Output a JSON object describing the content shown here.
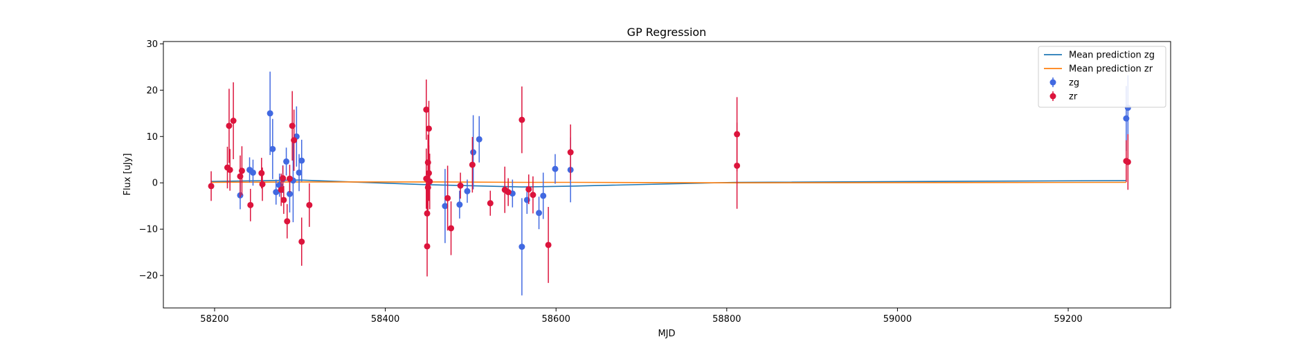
{
  "chart_data": {
    "type": "scatter",
    "title": "GP Regression",
    "xlabel": "MJD",
    "ylabel": "Flux [uJy]",
    "xlim": [
      58140,
      59320
    ],
    "ylim": [
      -27,
      30.5
    ],
    "xticks": [
      58200,
      58400,
      58600,
      58800,
      59000,
      59200
    ],
    "yticks": [
      -20,
      -10,
      0,
      10,
      20,
      30
    ],
    "grid": false,
    "legend_position": "top-right",
    "lines": [
      {
        "name": "Mean prediction zg",
        "color": "#1f77b4",
        "x": [
          58196,
          58300,
          58450,
          58560,
          58620,
          58810,
          59268
        ],
        "y": [
          0.3,
          0.6,
          -0.4,
          -0.9,
          -0.7,
          0.1,
          0.5
        ]
      },
      {
        "name": "Mean prediction zr",
        "color": "#ff7f0e",
        "x": [
          58196,
          58300,
          58450,
          58560,
          58620,
          58810,
          59268
        ],
        "y": [
          0.1,
          0.2,
          0.2,
          0.1,
          0.1,
          0.0,
          0.1
        ]
      }
    ],
    "series": [
      {
        "name": "zg",
        "color": "#4169e1",
        "points": [
          {
            "x": 58230,
            "y": -2.7,
            "err": 3.0
          },
          {
            "x": 58241,
            "y": 2.8,
            "err": 2.7
          },
          {
            "x": 58245,
            "y": 2.2,
            "err": 2.8
          },
          {
            "x": 58265,
            "y": 15.0,
            "err": 9.0
          },
          {
            "x": 58268,
            "y": 7.3,
            "err": 6.5
          },
          {
            "x": 58272,
            "y": -2.0,
            "err": 2.7
          },
          {
            "x": 58276,
            "y": -0.5,
            "err": 2.5
          },
          {
            "x": 58280,
            "y": 0.8,
            "err": 3.0
          },
          {
            "x": 58284,
            "y": 4.6,
            "err": 3.0
          },
          {
            "x": 58288,
            "y": -2.4,
            "err": 4.0
          },
          {
            "x": 58292,
            "y": 0.5,
            "err": 9.0
          },
          {
            "x": 58296,
            "y": 10.0,
            "err": 6.5
          },
          {
            "x": 58299,
            "y": 2.2,
            "err": 4.0
          },
          {
            "x": 58302,
            "y": 4.8,
            "err": 4.5
          },
          {
            "x": 58470,
            "y": -5.0,
            "err": 8.0
          },
          {
            "x": 58487,
            "y": -4.7,
            "err": 3.0
          },
          {
            "x": 58496,
            "y": -1.8,
            "err": 2.5
          },
          {
            "x": 58503,
            "y": 6.6,
            "err": 8.0
          },
          {
            "x": 58510,
            "y": 9.4,
            "err": 5.0
          },
          {
            "x": 58549,
            "y": -2.3,
            "err": 3.0
          },
          {
            "x": 58560,
            "y": -13.8,
            "err": 10.5
          },
          {
            "x": 58566,
            "y": -3.7,
            "err": 3.0
          },
          {
            "x": 58580,
            "y": -6.5,
            "err": 3.5
          },
          {
            "x": 58585,
            "y": -2.8,
            "err": 5.0
          },
          {
            "x": 58599,
            "y": 3.0,
            "err": 3.2
          },
          {
            "x": 58617,
            "y": 2.8,
            "err": 7.0
          },
          {
            "x": 59268,
            "y": 13.9,
            "err": 7.0
          },
          {
            "x": 59270,
            "y": 16.2,
            "err": 7.0
          }
        ]
      },
      {
        "name": "zr",
        "color": "#dc143c",
        "points": [
          {
            "x": 58196,
            "y": -0.7,
            "err": 3.2
          },
          {
            "x": 58215,
            "y": 3.3,
            "err": 4.5
          },
          {
            "x": 58217,
            "y": 12.3,
            "err": 8.0
          },
          {
            "x": 58218,
            "y": 2.8,
            "err": 4.5
          },
          {
            "x": 58222,
            "y": 13.4,
            "err": 8.3
          },
          {
            "x": 58230,
            "y": 1.4,
            "err": 4.5
          },
          {
            "x": 58232,
            "y": 2.6,
            "err": 5.3
          },
          {
            "x": 58242,
            "y": -4.8,
            "err": 3.5
          },
          {
            "x": 58255,
            "y": 2.1,
            "err": 3.3
          },
          {
            "x": 58256,
            "y": -0.3,
            "err": 3.6
          },
          {
            "x": 58278,
            "y": -1.5,
            "err": 3.5
          },
          {
            "x": 58280,
            "y": 1.0,
            "err": 2.7
          },
          {
            "x": 58281,
            "y": -3.7,
            "err": 3.0
          },
          {
            "x": 58285,
            "y": -8.3,
            "err": 3.7
          },
          {
            "x": 58288,
            "y": 0.9,
            "err": 3.0
          },
          {
            "x": 58291,
            "y": 12.3,
            "err": 7.5
          },
          {
            "x": 58293,
            "y": 9.2,
            "err": 6.6
          },
          {
            "x": 58302,
            "y": -12.7,
            "err": 5.2
          },
          {
            "x": 58311,
            "y": -4.8,
            "err": 4.7
          },
          {
            "x": 58448,
            "y": 15.8,
            "err": 6.5
          },
          {
            "x": 58448,
            "y": 0.9,
            "err": 6.5
          },
          {
            "x": 58449,
            "y": -6.6,
            "err": 6.5
          },
          {
            "x": 58449,
            "y": -13.7,
            "err": 6.5
          },
          {
            "x": 58450,
            "y": 4.4,
            "err": 6.0
          },
          {
            "x": 58450,
            "y": -1.0,
            "err": 6.0
          },
          {
            "x": 58451,
            "y": 11.7,
            "err": 6.0
          },
          {
            "x": 58451,
            "y": 2.1,
            "err": 6.0
          },
          {
            "x": 58452,
            "y": 0.3,
            "err": 6.0
          },
          {
            "x": 58473,
            "y": -3.3,
            "err": 7.0
          },
          {
            "x": 58477,
            "y": -9.8,
            "err": 5.8
          },
          {
            "x": 58488,
            "y": -0.6,
            "err": 2.8
          },
          {
            "x": 58502,
            "y": 3.9,
            "err": 6.0
          },
          {
            "x": 58523,
            "y": -4.4,
            "err": 2.7
          },
          {
            "x": 58540,
            "y": -1.5,
            "err": 5.0
          },
          {
            "x": 58544,
            "y": -2.0,
            "err": 3.0
          },
          {
            "x": 58560,
            "y": 13.6,
            "err": 7.2
          },
          {
            "x": 58568,
            "y": -1.4,
            "err": 3.2
          },
          {
            "x": 58573,
            "y": -2.6,
            "err": 4.0
          },
          {
            "x": 58591,
            "y": -13.4,
            "err": 8.2
          },
          {
            "x": 58617,
            "y": 6.6,
            "err": 6.0
          },
          {
            "x": 58812,
            "y": 10.5,
            "err": 8.0
          },
          {
            "x": 58812,
            "y": 3.7,
            "err": 9.3
          },
          {
            "x": 59268,
            "y": 4.7,
            "err": 4.5
          },
          {
            "x": 59270,
            "y": 4.5,
            "err": 6.0
          }
        ]
      }
    ]
  }
}
